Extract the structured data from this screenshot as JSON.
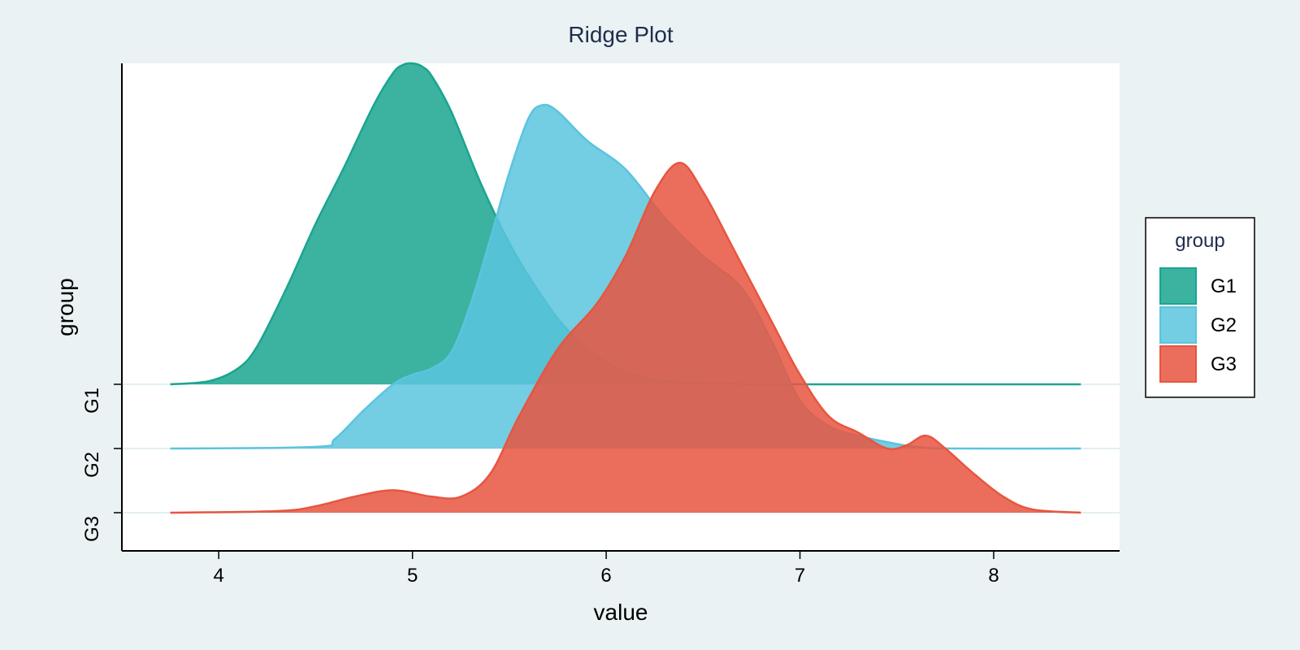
{
  "chart_data": {
    "type": "ridgeline",
    "title": "Ridge Plot",
    "xlabel": "value",
    "ylabel": "group",
    "xlim": [
      3.5,
      8.65
    ],
    "xticks": [
      4,
      5,
      6,
      7,
      8
    ],
    "categories": [
      "G1",
      "G2",
      "G3"
    ],
    "legend": {
      "title": "group",
      "position": "right"
    },
    "series": [
      {
        "name": "G1",
        "color": "#1aa58f",
        "baseline": "G1",
        "x": [
          3.75,
          3.95,
          4.1,
          4.2,
          4.35,
          4.5,
          4.65,
          4.8,
          4.9,
          4.95,
          5.0,
          5.05,
          5.1,
          5.2,
          5.35,
          5.5,
          5.65,
          5.8,
          6.0,
          6.2,
          6.4,
          6.6,
          6.8,
          7.0,
          7.5,
          8.0,
          8.45
        ],
        "density": [
          0.0,
          0.01,
          0.05,
          0.12,
          0.3,
          0.5,
          0.68,
          0.87,
          0.97,
          0.995,
          1.0,
          0.99,
          0.96,
          0.85,
          0.63,
          0.44,
          0.29,
          0.17,
          0.07,
          0.02,
          0.006,
          0.002,
          0.0,
          0.0,
          0.0,
          0.0,
          0.0
        ]
      },
      {
        "name": "G2",
        "color": "#5bc4de",
        "baseline": "G2",
        "x": [
          3.75,
          4.5,
          4.6,
          4.75,
          4.9,
          5.0,
          5.1,
          5.2,
          5.3,
          5.4,
          5.5,
          5.6,
          5.67,
          5.75,
          5.9,
          6.1,
          6.3,
          6.5,
          6.7,
          6.85,
          7.0,
          7.15,
          7.3,
          7.45,
          7.6,
          7.8,
          8.45
        ],
        "density": [
          0.0,
          0.005,
          0.03,
          0.12,
          0.2,
          0.23,
          0.25,
          0.3,
          0.45,
          0.65,
          0.86,
          1.03,
          1.07,
          1.05,
          0.96,
          0.87,
          0.72,
          0.6,
          0.5,
          0.34,
          0.15,
          0.07,
          0.04,
          0.02,
          0.005,
          0.0,
          0.0
        ]
      },
      {
        "name": "G3",
        "color": "#e8553f",
        "baseline": "G3",
        "x": [
          3.75,
          4.3,
          4.5,
          4.7,
          4.9,
          5.1,
          5.25,
          5.4,
          5.55,
          5.75,
          5.95,
          6.1,
          6.25,
          6.38,
          6.5,
          6.65,
          6.85,
          7.0,
          7.15,
          7.3,
          7.45,
          7.55,
          7.65,
          7.75,
          7.9,
          8.05,
          8.2,
          8.45
        ],
        "density": [
          0.0,
          0.005,
          0.02,
          0.05,
          0.07,
          0.05,
          0.05,
          0.12,
          0.3,
          0.51,
          0.65,
          0.8,
          1.0,
          1.09,
          1.0,
          0.83,
          0.6,
          0.43,
          0.3,
          0.25,
          0.2,
          0.21,
          0.24,
          0.2,
          0.12,
          0.05,
          0.01,
          0.0
        ]
      }
    ]
  }
}
